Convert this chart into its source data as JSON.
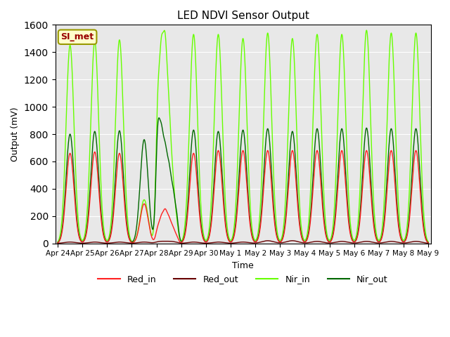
{
  "title": "LED NDVI Sensor Output",
  "xlabel": "Time",
  "ylabel": "Output (mV)",
  "ylim": [
    0,
    1600
  ],
  "background_color": "#e8e8e8",
  "annotation_text": "SI_met",
  "annotation_bg": "#ffffcc",
  "annotation_border": "#999900",
  "annotation_text_color": "#990000",
  "x_tick_labels": [
    "Apr 24",
    "Apr 25",
    "Apr 26",
    "Apr 27",
    "Apr 28",
    "Apr 29",
    "Apr 30",
    "May 1",
    "May 2",
    "May 3",
    "May 4",
    "May 5",
    "May 6",
    "May 7",
    "May 8",
    "May 9"
  ],
  "legend_colors_red_in": "#ff2020",
  "legend_colors_red_out": "#660000",
  "legend_colors_nir_in": "#66ff00",
  "legend_colors_nir_out": "#006600",
  "spike_positions": [
    0.5,
    1.5,
    2.5,
    3.5,
    5.5,
    6.5,
    7.5,
    8.5,
    9.5,
    10.5,
    11.5,
    12.5,
    13.5,
    14.5
  ],
  "red_in_peaks": [
    660,
    670,
    660,
    290,
    660,
    680,
    680,
    680,
    680,
    680,
    680,
    680,
    680,
    680
  ],
  "red_out_peaks": [
    10,
    10,
    10,
    10,
    10,
    10,
    10,
    20,
    20,
    15,
    15,
    15,
    15,
    15
  ],
  "nir_in_peaks": [
    1450,
    1480,
    1490,
    320,
    1530,
    1530,
    1500,
    1540,
    1500,
    1530,
    1530,
    1560,
    1540,
    1540
  ],
  "nir_out_peaks": [
    800,
    820,
    825,
    760,
    830,
    820,
    830,
    840,
    820,
    840,
    840,
    845,
    840,
    840
  ],
  "apr28_positions": [
    4.05,
    4.2,
    4.35,
    4.5,
    4.65,
    4.8
  ],
  "apr28_nir_in": [
    910,
    1150,
    1200,
    800,
    400,
    150
  ],
  "apr28_nir_out": [
    750,
    650,
    550,
    450,
    320,
    200
  ],
  "apr28_red_in": [
    100,
    160,
    200,
    150,
    100,
    50
  ],
  "apr28_red_out": [
    8,
    8,
    8,
    8,
    8,
    5
  ]
}
